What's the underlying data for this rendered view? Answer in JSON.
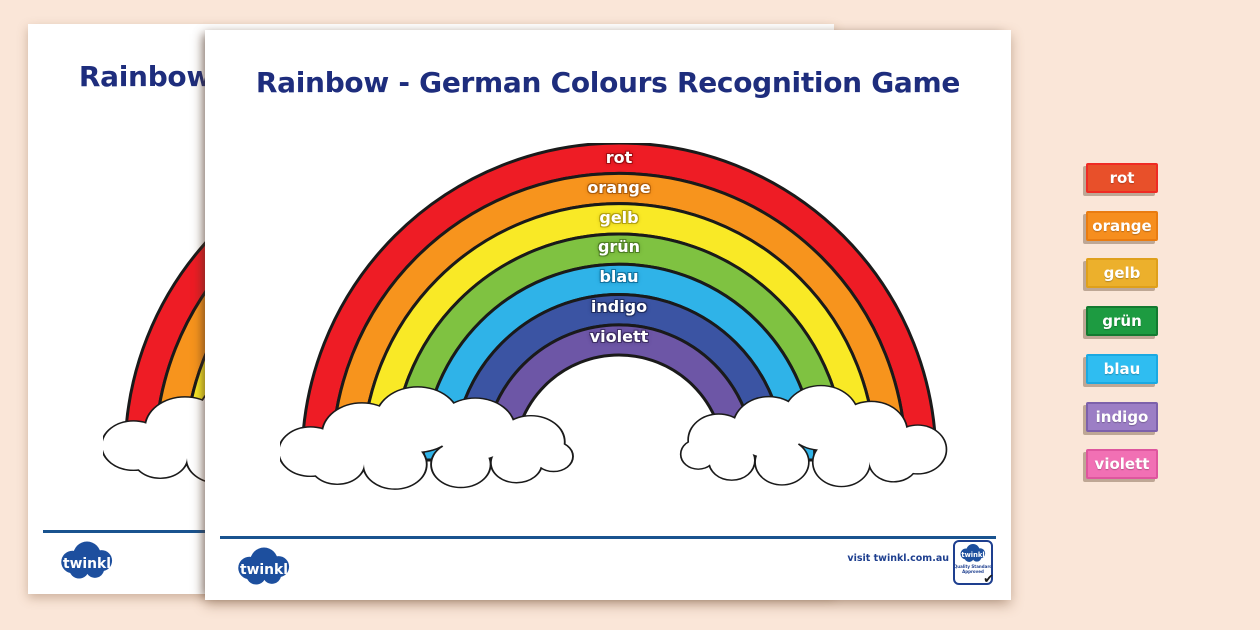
{
  "page": {
    "title": "Rainbow - German Colours Recognition Game",
    "footer": {
      "logo_text": "twinkl",
      "visit_text": "visit twinkl.com.au",
      "badge": {
        "logo_text": "twinkl",
        "line1": "Quality Standard",
        "line2": "Approved",
        "check": "✔"
      }
    }
  },
  "colors": {
    "desktop_background": "#fae6d8",
    "page_background": "#ffffff",
    "title_text": "#1e2d7d",
    "band_outline": "#1a1a1a",
    "footer_rule": "#19538f",
    "logo_blue": "#1d4f9e",
    "label_text": "#ffffff"
  },
  "rainbow": {
    "bands": [
      {
        "label": "rot",
        "color": "#ee1c25",
        "glow": "#a00d12"
      },
      {
        "label": "orange",
        "color": "#f7941d",
        "glow": "#b05e0a"
      },
      {
        "label": "gelb",
        "color": "#f9e926",
        "glow": "#b3a20e"
      },
      {
        "label": "grün",
        "color": "#7fc241",
        "glow": "#4e7f22"
      },
      {
        "label": "blau",
        "color": "#2fb3e8",
        "glow": "#1173a0"
      },
      {
        "label": "indigo",
        "color": "#3b54a3",
        "glow": "#1e2d62"
      },
      {
        "label": "violett",
        "color": "#6d56a6",
        "glow": "#3f2f66"
      }
    ]
  },
  "cards": [
    {
      "label": "rot",
      "bg": "#e8502a",
      "border": "#ef2b24"
    },
    {
      "label": "orange",
      "bg": "#f68e1e",
      "border": "#e97c11"
    },
    {
      "label": "gelb",
      "bg": "#ecb02c",
      "border": "#dfa01b"
    },
    {
      "label": "grün",
      "bg": "#1d9b41",
      "border": "#137a30"
    },
    {
      "label": "blau",
      "bg": "#2fbdf1",
      "border": "#1aa9e2"
    },
    {
      "label": "indigo",
      "bg": "#9c7ec5",
      "border": "#7d61ab"
    },
    {
      "label": "violett",
      "bg": "#f170b4",
      "border": "#de569e"
    }
  ]
}
